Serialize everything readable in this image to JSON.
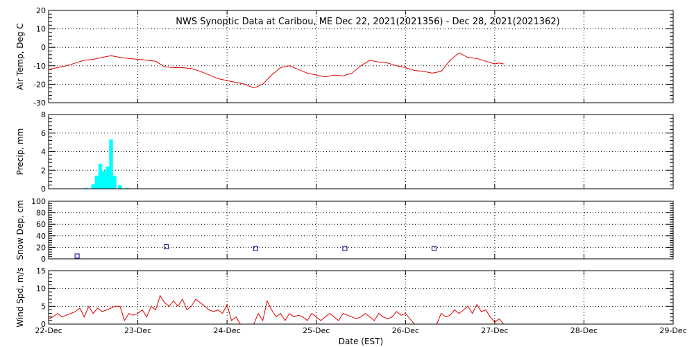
{
  "title": "NWS Synoptic Data at Caribou, ME   Dec 22, 2021(2021356) - Dec 28, 2021(2021362)",
  "xlabel": "Date (EST)",
  "x_tick_labels": [
    "22-Dec",
    "23-Dec",
    "24-Dec",
    "25-Dec",
    "26-Dec",
    "27-Dec",
    "28-Dec",
    "29-Dec"
  ],
  "colors": {
    "line": "#e00000",
    "precip": "#00ffff",
    "snow": "#00008b",
    "frame": "#000000"
  },
  "chart_data": [
    {
      "type": "line",
      "ylabel": "Air Temp, Deg C",
      "xlim": [
        0,
        7
      ],
      "ylim": [
        -30,
        20
      ],
      "yticks": [
        -30,
        -20,
        -10,
        0,
        10,
        20
      ],
      "grid": true,
      "series": [
        {
          "x": [
            0,
            0.1,
            0.2,
            0.3,
            0.4,
            0.5,
            0.6,
            0.7,
            0.8,
            0.9,
            1.0,
            1.1,
            1.2,
            1.3,
            1.4,
            1.5,
            1.6,
            1.7,
            1.8,
            1.9,
            2.0,
            2.1,
            2.2,
            2.3,
            2.4,
            2.5,
            2.6,
            2.7,
            2.8,
            2.9,
            3.0,
            3.1,
            3.2,
            3.3,
            3.4,
            3.5,
            3.6,
            3.7,
            3.8,
            3.9,
            4.0,
            4.1,
            4.2,
            4.3,
            4.4,
            4.5,
            4.6,
            4.7,
            4.8,
            4.9,
            5.0,
            5.05,
            5.1
          ],
          "y": [
            -12,
            -11,
            -10,
            -8.5,
            -7,
            -6.5,
            -5.5,
            -4.5,
            -5.5,
            -6,
            -6.5,
            -7,
            -7.5,
            -10.5,
            -11,
            -11,
            -11.5,
            -13,
            -15,
            -17,
            -18,
            -19,
            -20,
            -22,
            -20,
            -15,
            -11,
            -10,
            -12,
            -14,
            -15,
            -16,
            -15,
            -15.5,
            -14,
            -10,
            -7,
            -8,
            -8.5,
            -10,
            -11,
            -12.5,
            -13,
            -14,
            -13,
            -7,
            -3,
            -5.5,
            -6,
            -7.5,
            -9,
            -8.5,
            -9
          ]
        }
      ]
    },
    {
      "type": "bar",
      "ylabel": "Precip, mm",
      "xlim": [
        0,
        7
      ],
      "ylim": [
        0,
        8
      ],
      "yticks": [
        0,
        2,
        4,
        6,
        8
      ],
      "grid": true,
      "bar_width": 0.042,
      "series": [
        {
          "x": [
            0.42,
            0.5,
            0.54,
            0.58,
            0.62,
            0.66,
            0.7,
            0.74,
            0.8,
            0.88
          ],
          "y": [
            0.1,
            0.5,
            1.4,
            2.7,
            1.9,
            2.4,
            5.3,
            1.4,
            0.4,
            0.1
          ]
        }
      ]
    },
    {
      "type": "scatter",
      "ylabel": "Snow Dep, cm",
      "xlim": [
        0,
        7
      ],
      "ylim": [
        0,
        100
      ],
      "yticks": [
        0,
        20,
        40,
        60,
        80,
        100
      ],
      "grid": true,
      "series": [
        {
          "x": [
            0.32,
            1.32,
            2.32,
            3.32,
            4.32
          ],
          "y": [
            5,
            21,
            18,
            18,
            18
          ]
        }
      ]
    },
    {
      "type": "line",
      "ylabel": "Wind Spd, m/s",
      "xlim": [
        0,
        7
      ],
      "ylim": [
        0,
        15
      ],
      "yticks": [
        0,
        5,
        10,
        15
      ],
      "grid": true,
      "series": [
        {
          "x": [
            0,
            0.05,
            0.1,
            0.15,
            0.2,
            0.25,
            0.3,
            0.35,
            0.4,
            0.45,
            0.5,
            0.55,
            0.6,
            0.65,
            0.7,
            0.75,
            0.8,
            0.85,
            0.9,
            0.95,
            1.0,
            1.05,
            1.1,
            1.15,
            1.2,
            1.25,
            1.3,
            1.35,
            1.4,
            1.45,
            1.5,
            1.55,
            1.6,
            1.65,
            1.7,
            1.75,
            1.8,
            1.85,
            1.9,
            1.95,
            2.0,
            2.05,
            2.1,
            2.15,
            2.2,
            2.25,
            2.3,
            2.35,
            2.4,
            2.45,
            2.5,
            2.55,
            2.6,
            2.65,
            2.7,
            2.75,
            2.8,
            2.85,
            2.9,
            2.95,
            3.0,
            3.05,
            3.1,
            3.15,
            3.2,
            3.25,
            3.3,
            3.35,
            3.4,
            3.45,
            3.5,
            3.55,
            3.6,
            3.65,
            3.7,
            3.75,
            3.8,
            3.85,
            3.9,
            3.95,
            4.0,
            4.05,
            4.1,
            4.15,
            4.2,
            4.25,
            4.3,
            4.35,
            4.4,
            4.45,
            4.5,
            4.55,
            4.6,
            4.65,
            4.7,
            4.75,
            4.8,
            4.85,
            4.9,
            4.95,
            5.0,
            5.05,
            5.1
          ],
          "y": [
            1.5,
            2,
            3,
            2,
            2.5,
            3,
            3.5,
            4.5,
            2,
            5,
            3,
            4.5,
            3.5,
            4,
            4.5,
            5,
            5,
            1,
            3,
            2.5,
            3,
            4,
            2,
            5,
            4,
            8,
            6,
            5,
            6.5,
            5,
            7,
            4,
            5,
            7,
            6,
            5,
            4,
            3.5,
            4,
            3,
            5.5,
            1,
            2,
            0,
            0,
            0,
            0,
            3,
            1,
            6.5,
            4,
            2,
            3,
            1,
            3,
            2,
            2.5,
            2,
            1,
            3,
            2,
            1,
            2,
            3,
            2,
            1,
            3,
            2.5,
            2,
            1.5,
            2,
            3,
            2,
            1,
            3,
            2,
            1.5,
            2,
            3.5,
            2.5,
            3,
            1.5,
            0,
            0,
            0,
            0,
            0,
            0,
            3,
            2,
            2.5,
            4,
            3,
            4,
            5,
            3,
            5.5,
            3.5,
            4,
            2,
            0.5,
            1.5,
            0
          ]
        }
      ]
    }
  ]
}
